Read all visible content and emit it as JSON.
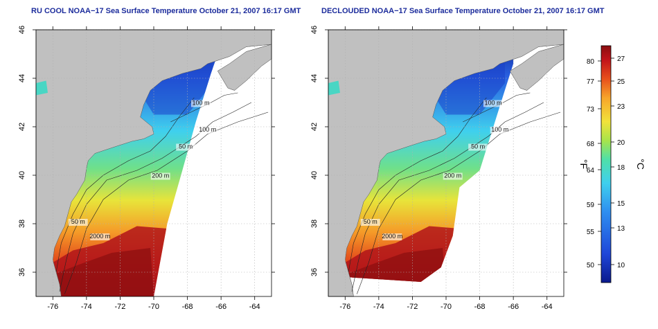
{
  "panels": [
    {
      "title": "RU COOL NOAA−17 Sea Surface Temperature October 21, 2007 16:17 GMT",
      "variant": "raw"
    },
    {
      "title": "DECLOUDED NOAA−17 Sea Surface Temperature October 21, 2007 16:17 GMT",
      "variant": "declouded"
    }
  ],
  "map_axes": {
    "lon_ticks": [
      "-76",
      "-74",
      "-72",
      "-70",
      "-68",
      "-66",
      "-64"
    ],
    "lat_ticks": [
      "36",
      "38",
      "40",
      "42",
      "44",
      "46"
    ]
  },
  "contour_labels": [
    "100 m",
    "100 m",
    "50 m",
    "200 m",
    "50 m",
    "2000 m"
  ],
  "colorbar": {
    "f_label": "°F",
    "c_label": "°C",
    "f_ticks": [
      "80",
      "77",
      "73",
      "68",
      "64",
      "59",
      "55",
      "50"
    ],
    "c_ticks": [
      "27",
      "25",
      "23",
      "20",
      "18",
      "15",
      "13",
      "10"
    ],
    "colors": [
      "#0a1a8c",
      "#1f46d8",
      "#2f8ff0",
      "#3fd0ee",
      "#4fe0a8",
      "#a8e44a",
      "#f2e23a",
      "#f7a52a",
      "#e8501c",
      "#c2141a",
      "#8a0e10"
    ]
  },
  "colors": {
    "land": "#c0c0c0",
    "title": "#1c2c9c",
    "grid": "#b0b0b0"
  }
}
